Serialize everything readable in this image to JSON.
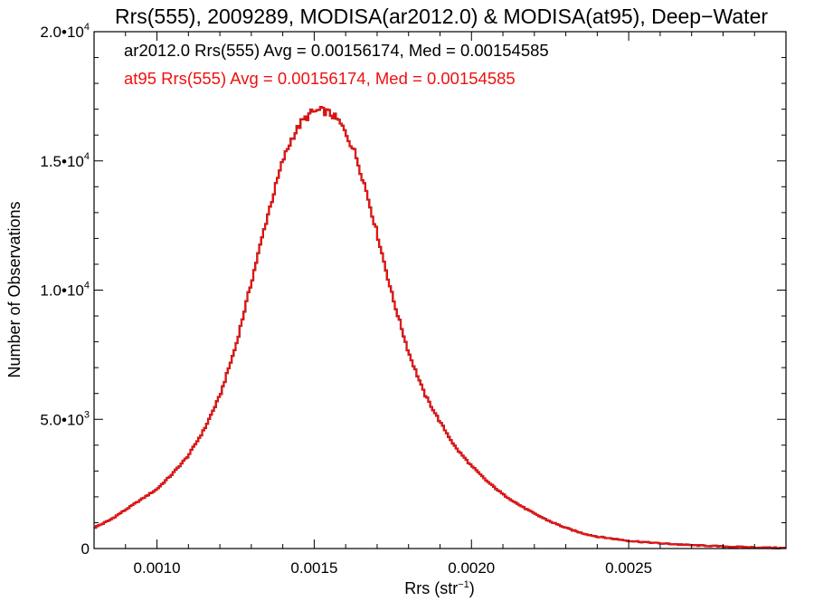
{
  "chart_data": {
    "type": "histogram",
    "title": "Rrs(555), 2009289, MODISA(ar2012.0) & MODISA(at95), Deep−Water",
    "xlabel": "Rrs (str",
    "xlabel_sup": "−1",
    "xlabel_end": ")",
    "ylabel": "Number of Observations",
    "xlim": [
      0.0008,
      0.003
    ],
    "ylim": [
      0,
      20000
    ],
    "x_ticks": [
      {
        "value": 0.001,
        "label": "0.0010"
      },
      {
        "value": 0.0015,
        "label": "0.0015"
      },
      {
        "value": 0.002,
        "label": "0.0020"
      },
      {
        "value": 0.0025,
        "label": "0.0025"
      }
    ],
    "y_ticks": [
      {
        "value": 0,
        "label": "0",
        "sup": ""
      },
      {
        "value": 5000,
        "label": "5.0•10",
        "sup": "3"
      },
      {
        "value": 10000,
        "label": "1.0•10",
        "sup": "4"
      },
      {
        "value": 15000,
        "label": "1.5•10",
        "sup": "4"
      },
      {
        "value": 20000,
        "label": "2.0•10",
        "sup": "4"
      }
    ],
    "annotations": [
      {
        "text": "ar2012.0 Rrs(555) Avg = 0.00156174, Med = 0.00154585",
        "color": "#000000"
      },
      {
        "text": "at95 Rrs(555) Avg = 0.00156174, Med = 0.00154585",
        "color": "#ee1111"
      }
    ],
    "series": [
      {
        "name": "ar2012.0",
        "color": "#000000",
        "x": [
          0.0008,
          0.00085,
          0.0009,
          0.00095,
          0.001,
          0.00105,
          0.0011,
          0.00115,
          0.0012,
          0.00125,
          0.0013,
          0.00135,
          0.0014,
          0.00143,
          0.00146,
          0.00149,
          0.0015,
          0.00152,
          0.00154,
          0.00156,
          0.00158,
          0.0016,
          0.00163,
          0.00166,
          0.0017,
          0.00175,
          0.0018,
          0.00185,
          0.0019,
          0.00195,
          0.002,
          0.00205,
          0.0021,
          0.00215,
          0.0022,
          0.00225,
          0.0023,
          0.00235,
          0.0024,
          0.0025,
          0.0026,
          0.0027,
          0.0028,
          0.0029,
          0.003
        ],
        "y": [
          800,
          1100,
          1500,
          1900,
          2300,
          2900,
          3600,
          4600,
          5900,
          7800,
          10300,
          12800,
          15000,
          15900,
          16500,
          16850,
          16900,
          16950,
          16900,
          16750,
          16500,
          16100,
          15300,
          14100,
          12200,
          9700,
          7600,
          6000,
          4900,
          3900,
          3200,
          2600,
          2100,
          1700,
          1350,
          1050,
          800,
          600,
          460,
          300,
          200,
          130,
          80,
          40,
          20
        ]
      },
      {
        "name": "at95",
        "color": "#ee1111",
        "x": [
          0.0008,
          0.00085,
          0.0009,
          0.00095,
          0.001,
          0.00105,
          0.0011,
          0.00115,
          0.0012,
          0.00125,
          0.0013,
          0.00135,
          0.0014,
          0.00143,
          0.00146,
          0.00149,
          0.0015,
          0.00152,
          0.00154,
          0.00156,
          0.00158,
          0.0016,
          0.00163,
          0.00166,
          0.0017,
          0.00175,
          0.0018,
          0.00185,
          0.0019,
          0.00195,
          0.002,
          0.00205,
          0.0021,
          0.00215,
          0.0022,
          0.00225,
          0.0023,
          0.00235,
          0.0024,
          0.0025,
          0.0026,
          0.0027,
          0.0028,
          0.0029,
          0.003
        ],
        "y": [
          800,
          1100,
          1500,
          1900,
          2300,
          2900,
          3600,
          4600,
          5900,
          7800,
          10300,
          12800,
          15000,
          15900,
          16500,
          16850,
          16900,
          16950,
          16900,
          16750,
          16500,
          16100,
          15300,
          14100,
          12200,
          9700,
          7600,
          6000,
          4900,
          3900,
          3200,
          2600,
          2100,
          1700,
          1350,
          1050,
          800,
          600,
          460,
          300,
          200,
          130,
          80,
          40,
          20
        ]
      }
    ],
    "grid": false,
    "legend": "top-left"
  }
}
